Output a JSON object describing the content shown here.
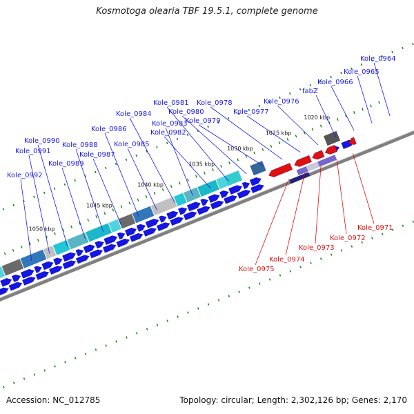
{
  "title": "Kosmotoga olearia TBF 19.5.1, complete genome",
  "footer": {
    "accession": "Accession: NC_012785",
    "info": "Topology: circular; Length: 2,302,126 bp; Genes: 2,170"
  },
  "colors": {
    "forward_gene": "#1515e6",
    "reverse_gene": "#e01010",
    "forward_label": "#1a1aee",
    "reverse_label": "#dd1111",
    "backbone": "#808080",
    "tick": "#118811"
  },
  "kbp_labels": [
    "1020 kbp",
    "1025 kbp",
    "1030 kbp",
    "1035 kbp",
    "1040 kbp",
    "1045 kbp",
    "1050 kbp"
  ],
  "forward_genes": [
    "Kole_0964",
    "Kole_0965",
    "Kole_0966",
    "fabZ",
    "Kole_0976",
    "Kole_0977",
    "Kole_0978",
    "Kole_0979",
    "Kole_0980",
    "Kole_0981",
    "Kole_0982",
    "Kole_0983",
    "Kole_0984",
    "Kole_0985",
    "Kole_0986",
    "Kole_0987",
    "Kole_0988",
    "Kole_0989",
    "Kole_0990",
    "Kole_0991",
    "Kole_0992"
  ],
  "reverse_genes": [
    "Kole_0971",
    "Kole_0972",
    "Kole_0973",
    "Kole_0974",
    "Kole_0975"
  ]
}
